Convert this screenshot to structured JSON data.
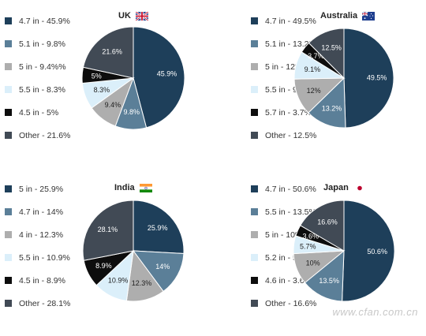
{
  "chart_data": [
    {
      "type": "pie",
      "title": "UK",
      "flag": "uk-flag",
      "slices": [
        {
          "label": "4.7 in - 45.9%",
          "value": 45.9,
          "pct": "45.9%",
          "color": "#1e3f5a"
        },
        {
          "label": "5.1 in - 9.8%",
          "value": 9.8,
          "pct": "9.8%",
          "color": "#5b7f98"
        },
        {
          "label": "5 in - 9.4%%",
          "value": 9.4,
          "pct": "9.4%",
          "color": "#aeaeae"
        },
        {
          "label": "5.5 in - 8.3%",
          "value": 8.3,
          "pct": "8.3%",
          "color": "#dbeffa"
        },
        {
          "label": "4.5 in - 5%",
          "value": 5.0,
          "pct": "5%",
          "color": "#0d0d0d"
        },
        {
          "label": "Other - 21.6%",
          "value": 21.6,
          "pct": "21.6%",
          "color": "#414a55"
        }
      ]
    },
    {
      "type": "pie",
      "title": "Australia",
      "flag": "australia-flag",
      "slices": [
        {
          "label": "4.7 in - 49.5%",
          "value": 49.5,
          "pct": "49.5%",
          "color": "#1e3f5a"
        },
        {
          "label": "5.1 in - 13.2%",
          "value": 13.2,
          "pct": "13.2%",
          "color": "#5b7f98"
        },
        {
          "label": "5 in - 12%",
          "value": 12.0,
          "pct": "12%",
          "color": "#aeaeae"
        },
        {
          "label": "5.5 in - 9.1%",
          "value": 9.1,
          "pct": "9.1%",
          "color": "#dbeffa"
        },
        {
          "label": "5.7 in - 3.7%",
          "value": 3.7,
          "pct": "3.7%",
          "color": "#0d0d0d"
        },
        {
          "label": "Other - 12.5%",
          "value": 12.5,
          "pct": "12.5%",
          "color": "#414a55"
        }
      ]
    },
    {
      "type": "pie",
      "title": "India",
      "flag": "india-flag",
      "slices": [
        {
          "label": "5 in - 25.9%",
          "value": 25.9,
          "pct": "25.9%",
          "color": "#1e3f5a"
        },
        {
          "label": "4.7 in - 14%",
          "value": 14.0,
          "pct": "14%",
          "color": "#5b7f98"
        },
        {
          "label": "4 in - 12.3%",
          "value": 12.3,
          "pct": "12.3%",
          "color": "#aeaeae"
        },
        {
          "label": "5.5 in - 10.9%",
          "value": 10.9,
          "pct": "10.9%",
          "color": "#dbeffa"
        },
        {
          "label": "4.5 in - 8.9%",
          "value": 8.9,
          "pct": "8.9%",
          "color": "#0d0d0d"
        },
        {
          "label": "Other - 28.1%",
          "value": 28.1,
          "pct": "28.1%",
          "color": "#414a55"
        }
      ]
    },
    {
      "type": "pie",
      "title": "Japan",
      "flag": "japan-flag",
      "slices": [
        {
          "label": "4.7 in - 50.6%",
          "value": 50.6,
          "pct": "50.6%",
          "color": "#1e3f5a"
        },
        {
          "label": "5.5 in - 13.5%",
          "value": 13.5,
          "pct": "13.5%",
          "color": "#5b7f98"
        },
        {
          "label": "5 in - 10%",
          "value": 10.0,
          "pct": "10%",
          "color": "#aeaeae"
        },
        {
          "label": "5.2 in - 5.7%",
          "value": 5.7,
          "pct": "5.7%",
          "color": "#dbeffa"
        },
        {
          "label": "4.6 in - 3.6%",
          "value": 3.6,
          "pct": "3.6%",
          "color": "#0d0d0d"
        },
        {
          "label": "Other - 16.6%",
          "value": 16.6,
          "pct": "16.6%",
          "color": "#414a55"
        }
      ]
    }
  ],
  "watermark": "www.cfan.com.cn"
}
